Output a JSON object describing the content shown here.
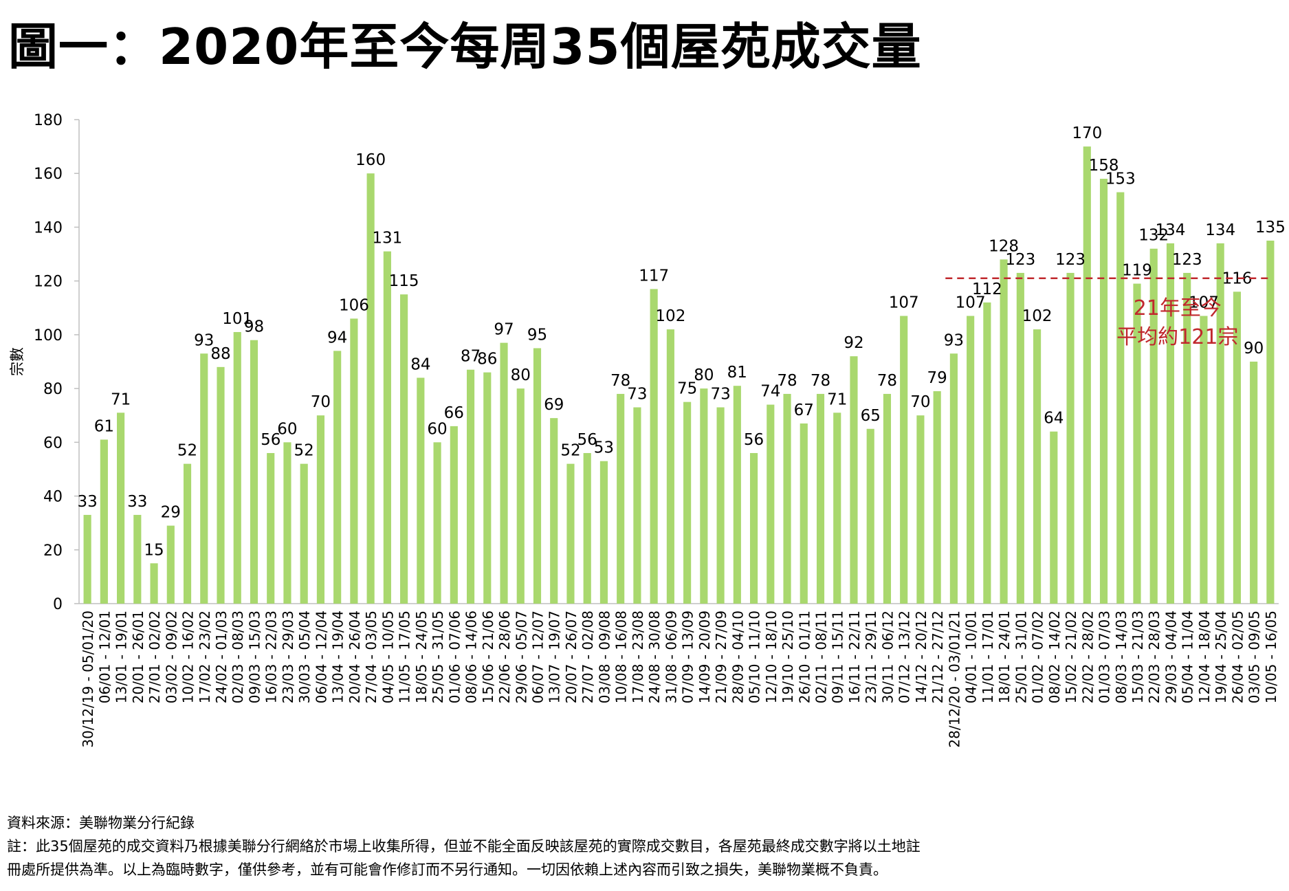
{
  "title": "圖一：2020年至今每周35個屋苑成交量",
  "chart_data": {
    "type": "bar",
    "ylabel": "宗數",
    "xlabel": "",
    "ylim": [
      0,
      180
    ],
    "yticks": [
      0,
      20,
      40,
      60,
      80,
      100,
      120,
      140,
      160,
      180
    ],
    "grid": false,
    "bar_color": "#a9d86e",
    "categories": [
      "30/12/19 - 05/01/20",
      "06/01 - 12/01",
      "13/01 - 19/01",
      "20/01 - 26/01",
      "27/01 - 02/02",
      "03/02 - 09/02",
      "10/02 - 16/02",
      "17/02 - 23/02",
      "24/02 - 01/03",
      "02/03 - 08/03",
      "09/03 - 15/03",
      "16/03 - 22/03",
      "23/03 - 29/03",
      "30/03 - 05/04",
      "06/04 - 12/04",
      "13/04 - 19/04",
      "20/04 - 26/04",
      "27/04 - 03/05",
      "04/05 - 10/05",
      "11/05 - 17/05",
      "18/05 - 24/05",
      "25/05 - 31/05",
      "01/06 - 07/06",
      "08/06 - 14/06",
      "15/06 - 21/06",
      "22/06 - 28/06",
      "29/06 - 05/07",
      "06/07 - 12/07",
      "13/07 - 19/07",
      "20/07 - 26/07",
      "27/07 - 02/08",
      "03/08 - 09/08",
      "10/08 - 16/08",
      "17/08 - 23/08",
      "24/08 - 30/08",
      "31/08 - 06/09",
      "07/09 - 13/09",
      "14/09 - 20/09",
      "21/09 - 27/09",
      "28/09 - 04/10",
      "05/10 - 11/10",
      "12/10 - 18/10",
      "19/10 - 25/10",
      "26/10 - 01/11",
      "02/11 - 08/11",
      "09/11 - 15/11",
      "16/11 - 22/11",
      "23/11 - 29/11",
      "30/11 - 06/12",
      "07/12 - 13/12",
      "14/12 - 20/12",
      "21/12 - 27/12",
      "28/12/20 - 03/01/21",
      "04/01 - 10/01",
      "11/01 - 17/01",
      "18/01 - 24/01",
      "25/01 - 31/01",
      "01/02 - 07/02",
      "08/02 - 14/02",
      "15/02 - 21/02",
      "22/02 - 28/02",
      "01/03 - 07/03",
      "08/03 - 14/03",
      "15/03 - 21/03",
      "22/03 - 28/03",
      "29/03 - 04/04",
      "05/04 - 11/04",
      "12/04 - 18/04",
      "19/04 - 25/04",
      "26/04 - 02/05",
      "03/05 - 09/05",
      "10/05 - 16/05"
    ],
    "values": [
      33,
      61,
      71,
      33,
      15,
      29,
      52,
      93,
      88,
      101,
      98,
      56,
      60,
      52,
      70,
      94,
      106,
      160,
      131,
      115,
      84,
      60,
      66,
      87,
      86,
      97,
      80,
      95,
      69,
      52,
      56,
      53,
      78,
      73,
      117,
      102,
      75,
      80,
      73,
      81,
      56,
      74,
      78,
      67,
      78,
      71,
      92,
      65,
      78,
      107,
      70,
      79,
      93,
      107,
      112,
      128,
      123,
      102,
      64,
      123,
      170,
      158,
      153,
      119,
      132,
      134,
      123,
      107,
      134,
      116,
      90,
      135
    ],
    "average_line": {
      "value": 121,
      "start_index": 52,
      "color": "#c0282d",
      "label_line1": "21年至今",
      "label_line2": "平均約121宗"
    }
  },
  "footer": {
    "source": "資料來源：美聯物業分行紀錄",
    "note_line1": "註：此35個屋苑的成交資料乃根據美聯分行網絡於市場上收集所得，但並不能全面反映該屋苑的實際成交數目，各屋苑最終成交數字將以土地註",
    "note_line2": "冊處所提供為準。以上為臨時數字，僅供參考，並有可能會作修訂而不另行通知。一切因依賴上述內容而引致之損失，美聯物業概不負責。"
  }
}
